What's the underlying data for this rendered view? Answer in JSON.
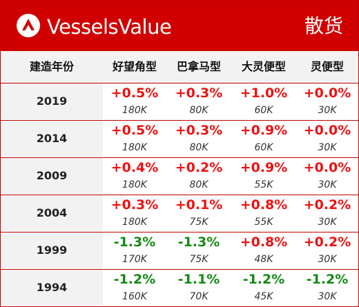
{
  "header": {
    "brand": "VesselsValue",
    "category": "散货",
    "logo_icon": "vesselsvalue-logo-icon",
    "color": "#d10000"
  },
  "table": {
    "columns": [
      "建造年份",
      "好望角型",
      "巴拿马型",
      "大灵便型",
      "灵便型"
    ],
    "rows": [
      {
        "year": "2019",
        "cells": [
          {
            "change": "+0.5%",
            "dwt": "180K",
            "direction": "up"
          },
          {
            "change": "+0.3%",
            "dwt": "80K",
            "direction": "up"
          },
          {
            "change": "+1.0%",
            "dwt": "60K",
            "direction": "up"
          },
          {
            "change": "+0.0%",
            "dwt": "30K",
            "direction": "up"
          }
        ]
      },
      {
        "year": "2014",
        "cells": [
          {
            "change": "+0.5%",
            "dwt": "180K",
            "direction": "up"
          },
          {
            "change": "+0.3%",
            "dwt": "80K",
            "direction": "up"
          },
          {
            "change": "+0.9%",
            "dwt": "60K",
            "direction": "up"
          },
          {
            "change": "+0.0%",
            "dwt": "30K",
            "direction": "up"
          }
        ]
      },
      {
        "year": "2009",
        "cells": [
          {
            "change": "+0.4%",
            "dwt": "180K",
            "direction": "up"
          },
          {
            "change": "+0.2%",
            "dwt": "80K",
            "direction": "up"
          },
          {
            "change": "+0.9%",
            "dwt": "55K",
            "direction": "up"
          },
          {
            "change": "+0.0%",
            "dwt": "30K",
            "direction": "up"
          }
        ]
      },
      {
        "year": "2004",
        "cells": [
          {
            "change": "+0.3%",
            "dwt": "180K",
            "direction": "up"
          },
          {
            "change": "+0.1%",
            "dwt": "75K",
            "direction": "up"
          },
          {
            "change": "+0.8%",
            "dwt": "55K",
            "direction": "up"
          },
          {
            "change": "+0.2%",
            "dwt": "30K",
            "direction": "up"
          }
        ]
      },
      {
        "year": "1999",
        "cells": [
          {
            "change": "-1.3%",
            "dwt": "170K",
            "direction": "down"
          },
          {
            "change": "-1.3%",
            "dwt": "75K",
            "direction": "down"
          },
          {
            "change": "+0.8%",
            "dwt": "48K",
            "direction": "up"
          },
          {
            "change": "+0.2%",
            "dwt": "30K",
            "direction": "up"
          }
        ]
      },
      {
        "year": "1994",
        "cells": [
          {
            "change": "-1.2%",
            "dwt": "160K",
            "direction": "down"
          },
          {
            "change": "-1.1%",
            "dwt": "70K",
            "direction": "down"
          },
          {
            "change": "-1.2%",
            "dwt": "45K",
            "direction": "down"
          },
          {
            "change": "-1.2%",
            "dwt": "30K",
            "direction": "down"
          }
        ]
      }
    ]
  },
  "colors": {
    "positive": "#ee1111",
    "negative": "#138a13",
    "accent": "#c00000",
    "label_bg": "#f2f2f2"
  }
}
